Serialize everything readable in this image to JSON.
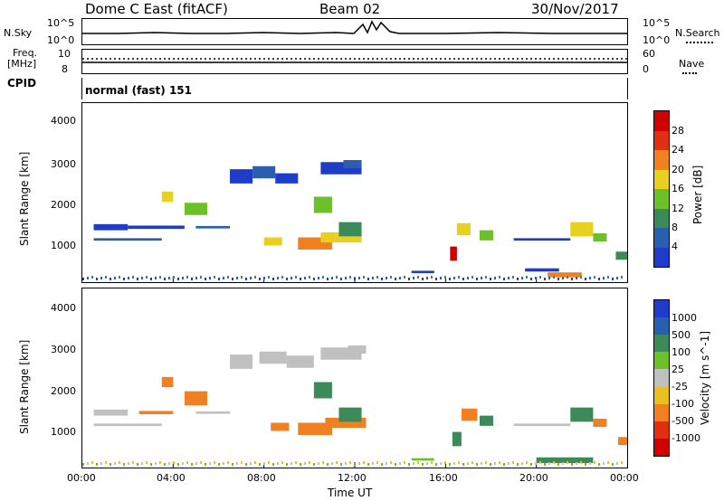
{
  "header": {
    "station": "Dome C East (fitACF)",
    "beam": "Beam 02",
    "date": "30/Nov/2017"
  },
  "top_panels": {
    "nsky_label": "N.Sky",
    "nsky_ticks": [
      "10^5",
      "10^0"
    ],
    "nsearch_label": "N.Search",
    "nsearch_ticks": [
      "10^5",
      "10^0"
    ],
    "freq_label_1": "Freq.",
    "freq_label_2": "[MHz]",
    "freq_ticks": [
      "10",
      "8"
    ],
    "nave_label": "Nave",
    "nave_ticks": [
      "60",
      "0"
    ],
    "cpid_label": "CPID",
    "cpid_value": "normal (fast) 151"
  },
  "x_axis": {
    "label": "Time UT",
    "ticks": [
      "00:00",
      "04:00",
      "08:00",
      "12:00",
      "16:00",
      "20:00",
      "00:00"
    ]
  },
  "colors": {
    "power": [
      "#1f3cc8",
      "#2a5fb0",
      "#3c8a5a",
      "#6cc02a",
      "#e8d020",
      "#f08020",
      "#e03010",
      "#d00000"
    ],
    "velocity": [
      "#1f3cc8",
      "#2a5fb0",
      "#3c8a5a",
      "#6cc02a",
      "#c0c0c0",
      "#e8c020",
      "#f08020",
      "#e03010",
      "#d00000"
    ]
  },
  "chart_data": [
    {
      "type": "heatmap",
      "ylabel": "Slant Range [km]",
      "y_ticks": [
        "4000",
        "3000",
        "2000",
        "1000"
      ],
      "ylim": [
        200,
        4600
      ],
      "colorbar_label": "Power [dB]",
      "colorbar_ticks": [
        "28",
        "24",
        "20",
        "16",
        "12",
        "8",
        "4"
      ],
      "patches": [
        {
          "t": 0.5,
          "r": 1550,
          "w": 1.5,
          "h": 150,
          "c": 0
        },
        {
          "t": 0.5,
          "r": 1250,
          "w": 3.0,
          "h": 60,
          "c": 1
        },
        {
          "t": 2.0,
          "r": 1550,
          "w": 2.5,
          "h": 80,
          "c": 0
        },
        {
          "t": 3.5,
          "r": 2300,
          "w": 0.5,
          "h": 250,
          "c": 4
        },
        {
          "t": 4.5,
          "r": 2000,
          "w": 1.0,
          "h": 300,
          "c": 3
        },
        {
          "t": 5.0,
          "r": 1550,
          "w": 1.5,
          "h": 60,
          "c": 1
        },
        {
          "t": 6.5,
          "r": 2800,
          "w": 1.0,
          "h": 350,
          "c": 0
        },
        {
          "t": 7.5,
          "r": 2900,
          "w": 1.0,
          "h": 300,
          "c": 1
        },
        {
          "t": 8.5,
          "r": 2750,
          "w": 1.0,
          "h": 250,
          "c": 0
        },
        {
          "t": 8.0,
          "r": 1200,
          "w": 0.8,
          "h": 200,
          "c": 4
        },
        {
          "t": 9.5,
          "r": 1150,
          "w": 1.5,
          "h": 300,
          "c": 5
        },
        {
          "t": 10.5,
          "r": 1300,
          "w": 1.8,
          "h": 250,
          "c": 4
        },
        {
          "t": 11.3,
          "r": 1500,
          "w": 1.0,
          "h": 350,
          "c": 2
        },
        {
          "t": 10.2,
          "r": 2100,
          "w": 0.8,
          "h": 400,
          "c": 3
        },
        {
          "t": 10.5,
          "r": 3000,
          "w": 1.8,
          "h": 300,
          "c": 0
        },
        {
          "t": 11.5,
          "r": 3100,
          "w": 0.8,
          "h": 200,
          "c": 1
        },
        {
          "t": 14.5,
          "r": 450,
          "w": 1.0,
          "h": 60,
          "c": 0
        },
        {
          "t": 16.2,
          "r": 900,
          "w": 0.3,
          "h": 350,
          "c": 7
        },
        {
          "t": 16.5,
          "r": 1500,
          "w": 0.6,
          "h": 300,
          "c": 4
        },
        {
          "t": 17.5,
          "r": 1350,
          "w": 0.6,
          "h": 250,
          "c": 3
        },
        {
          "t": 19.0,
          "r": 1250,
          "w": 2.5,
          "h": 60,
          "c": 0
        },
        {
          "t": 20.5,
          "r": 380,
          "w": 1.5,
          "h": 120,
          "c": 5
        },
        {
          "t": 19.5,
          "r": 500,
          "w": 1.5,
          "h": 80,
          "c": 0
        },
        {
          "t": 21.5,
          "r": 1500,
          "w": 1.0,
          "h": 350,
          "c": 4
        },
        {
          "t": 22.5,
          "r": 1300,
          "w": 0.6,
          "h": 200,
          "c": 3
        },
        {
          "t": 23.5,
          "r": 850,
          "w": 0.5,
          "h": 200,
          "c": 2
        }
      ]
    },
    {
      "type": "heatmap",
      "ylabel": "Slant Range [km]",
      "y_ticks": [
        "4000",
        "3000",
        "2000",
        "1000"
      ],
      "ylim": [
        200,
        4600
      ],
      "colorbar_label": "Velocity [m s^-1]",
      "colorbar_ticks": [
        "1000",
        "500",
        "100",
        "25",
        "-25",
        "-100",
        "-500",
        "-1000"
      ],
      "patches": [
        {
          "t": 0.5,
          "r": 1550,
          "w": 1.5,
          "h": 150,
          "c": 4
        },
        {
          "t": 0.5,
          "r": 1250,
          "w": 3.0,
          "h": 60,
          "c": 4
        },
        {
          "t": 2.5,
          "r": 1550,
          "w": 1.5,
          "h": 80,
          "c": 6
        },
        {
          "t": 3.5,
          "r": 2300,
          "w": 0.5,
          "h": 250,
          "c": 6
        },
        {
          "t": 4.5,
          "r": 1900,
          "w": 1.0,
          "h": 350,
          "c": 6
        },
        {
          "t": 5.0,
          "r": 1550,
          "w": 1.5,
          "h": 60,
          "c": 4
        },
        {
          "t": 6.5,
          "r": 2800,
          "w": 1.0,
          "h": 350,
          "c": 4
        },
        {
          "t": 7.8,
          "r": 2900,
          "w": 1.2,
          "h": 300,
          "c": 4
        },
        {
          "t": 9.0,
          "r": 2800,
          "w": 1.2,
          "h": 300,
          "c": 4
        },
        {
          "t": 8.3,
          "r": 1200,
          "w": 0.8,
          "h": 200,
          "c": 6
        },
        {
          "t": 9.5,
          "r": 1150,
          "w": 1.5,
          "h": 300,
          "c": 6
        },
        {
          "t": 10.7,
          "r": 1300,
          "w": 1.8,
          "h": 250,
          "c": 6
        },
        {
          "t": 11.3,
          "r": 1500,
          "w": 1.0,
          "h": 350,
          "c": 2
        },
        {
          "t": 10.2,
          "r": 2100,
          "w": 0.8,
          "h": 400,
          "c": 2
        },
        {
          "t": 10.5,
          "r": 3000,
          "w": 1.8,
          "h": 300,
          "c": 4
        },
        {
          "t": 11.7,
          "r": 3100,
          "w": 0.8,
          "h": 200,
          "c": 4
        },
        {
          "t": 14.5,
          "r": 400,
          "w": 1.0,
          "h": 60,
          "c": 3
        },
        {
          "t": 16.3,
          "r": 900,
          "w": 0.4,
          "h": 350,
          "c": 2
        },
        {
          "t": 16.7,
          "r": 1500,
          "w": 0.7,
          "h": 300,
          "c": 6
        },
        {
          "t": 17.5,
          "r": 1350,
          "w": 0.6,
          "h": 250,
          "c": 2
        },
        {
          "t": 19.0,
          "r": 1250,
          "w": 2.5,
          "h": 60,
          "c": 4
        },
        {
          "t": 20.0,
          "r": 380,
          "w": 2.5,
          "h": 140,
          "c": 2
        },
        {
          "t": 21.5,
          "r": 1500,
          "w": 1.0,
          "h": 350,
          "c": 2
        },
        {
          "t": 22.5,
          "r": 1300,
          "w": 0.6,
          "h": 200,
          "c": 6
        },
        {
          "t": 23.6,
          "r": 850,
          "w": 0.5,
          "h": 200,
          "c": 6
        }
      ]
    }
  ]
}
